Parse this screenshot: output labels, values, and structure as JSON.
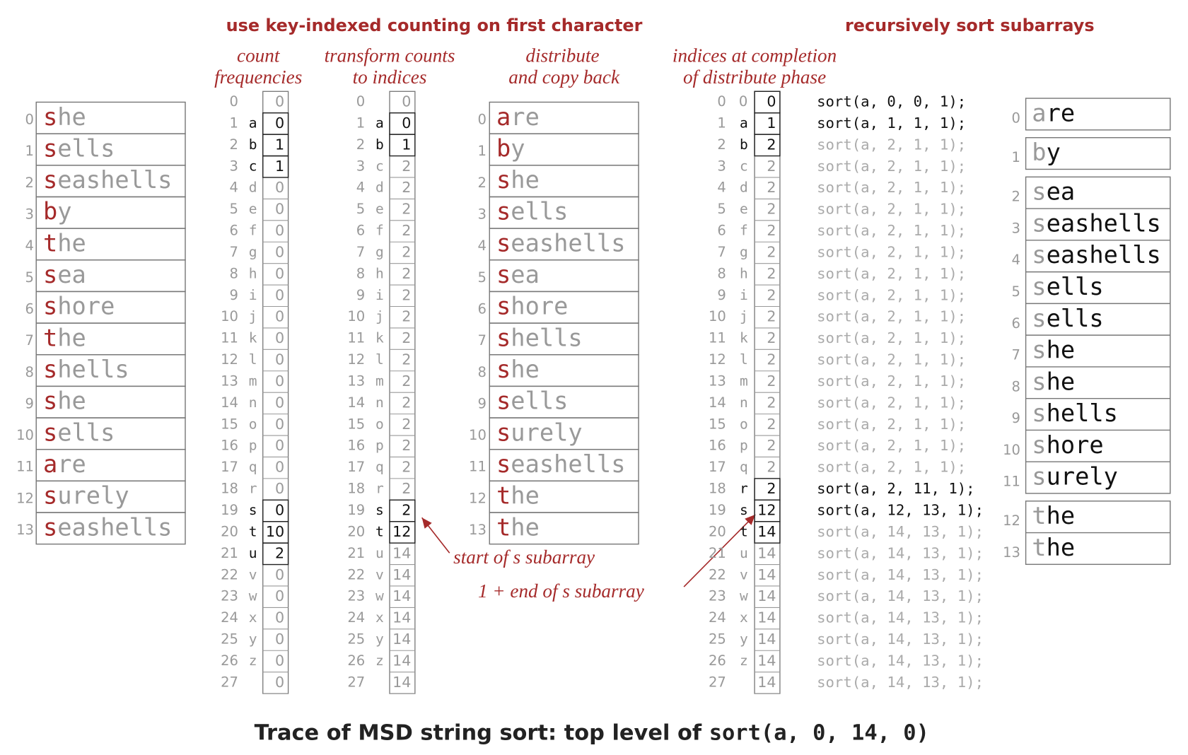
{
  "headings": {
    "left": "use key-indexed counting on first character",
    "right": "recursively sort subarrays"
  },
  "captions": {
    "count": [
      "count",
      "frequencies"
    ],
    "transform": [
      "transform counts",
      "to indices"
    ],
    "distribute": [
      "distribute",
      "and copy back"
    ],
    "completion": [
      "indices at completion",
      "of distribute phase"
    ]
  },
  "array_indices": [
    0,
    1,
    2,
    3,
    4,
    5,
    6,
    7,
    8,
    9,
    10,
    11,
    12,
    13
  ],
  "row_indices": [
    0,
    1,
    2,
    3,
    4,
    5,
    6,
    7,
    8,
    9,
    10,
    11,
    12,
    13,
    14,
    15,
    16,
    17,
    18,
    19,
    20,
    21,
    22,
    23,
    24,
    25,
    26,
    27
  ],
  "letters": [
    "a",
    "b",
    "c",
    "d",
    "e",
    "f",
    "g",
    "h",
    "i",
    "j",
    "k",
    "l",
    "m",
    "n",
    "o",
    "p",
    "q",
    "r",
    "s",
    "t",
    "u",
    "v",
    "w",
    "x",
    "y",
    "z"
  ],
  "input": [
    "she",
    "sells",
    "seashells",
    "by",
    "the",
    "sea",
    "shore",
    "the",
    "shells",
    "she",
    "sells",
    "are",
    "surely",
    "seashells"
  ],
  "count": [
    0,
    0,
    1,
    1,
    0,
    0,
    0,
    0,
    0,
    0,
    0,
    0,
    0,
    0,
    0,
    0,
    0,
    0,
    0,
    0,
    10,
    2,
    0,
    0,
    0,
    0,
    0,
    0
  ],
  "count_highlight": [
    1,
    2,
    3,
    19,
    20,
    21
  ],
  "transform": [
    0,
    0,
    1,
    2,
    2,
    2,
    2,
    2,
    2,
    2,
    2,
    2,
    2,
    2,
    2,
    2,
    2,
    2,
    2,
    2,
    12,
    14,
    14,
    14,
    14,
    14,
    14,
    14
  ],
  "transform_highlight": [
    1,
    2,
    19,
    20
  ],
  "distribute": [
    "are",
    "by",
    "she",
    "sells",
    "seashells",
    "sea",
    "shore",
    "shells",
    "she",
    "sells",
    "surely",
    "seashells",
    "the",
    "the"
  ],
  "completion": [
    0,
    1,
    2,
    2,
    2,
    2,
    2,
    2,
    2,
    2,
    2,
    2,
    2,
    2,
    2,
    2,
    2,
    2,
    2,
    12,
    14,
    14,
    14,
    14,
    14,
    14,
    14,
    14
  ],
  "completion_highlight": [
    0,
    1,
    2,
    18,
    19,
    20
  ],
  "sort_calls": [
    "sort(a, 0, 0, 1);",
    "sort(a, 1, 1, 1);",
    "sort(a, 2, 1, 1);",
    "sort(a, 2, 1, 1);",
    "sort(a, 2, 1, 1);",
    "sort(a, 2, 1, 1);",
    "sort(a, 2, 1, 1);",
    "sort(a, 2, 1, 1);",
    "sort(a, 2, 1, 1);",
    "sort(a, 2, 1, 1);",
    "sort(a, 2, 1, 1);",
    "sort(a, 2, 1, 1);",
    "sort(a, 2, 1, 1);",
    "sort(a, 2, 1, 1);",
    "sort(a, 2, 1, 1);",
    "sort(a, 2, 1, 1);",
    "sort(a, 2, 1, 1);",
    "sort(a, 2, 1, 1);",
    "sort(a, 2, 11, 1);",
    "sort(a, 12, 13, 1);",
    "sort(a, 14, 13, 1);",
    "sort(a, 14, 13, 1);",
    "sort(a, 14, 13, 1);",
    "sort(a, 14, 13, 1);",
    "sort(a, 14, 13, 1);",
    "sort(a, 14, 13, 1);",
    "sort(a, 14, 13, 1);",
    "sort(a, 14, 13, 1);"
  ],
  "sort_calls_highlight": [
    0,
    1,
    18,
    19
  ],
  "output_groups": [
    [
      "are"
    ],
    [
      "by"
    ],
    [
      "sea",
      "seashells",
      "seashells",
      "sells",
      "sells",
      "she",
      "she",
      "shells",
      "shore",
      "surely"
    ],
    [
      "the",
      "the"
    ]
  ],
  "annotations": {
    "start": "start of s subarray",
    "end": "1 + end of s subarray"
  },
  "caption": {
    "prefix": "Trace of MSD string sort: top level of ",
    "code": "sort(a, 0, 14, 0)"
  }
}
